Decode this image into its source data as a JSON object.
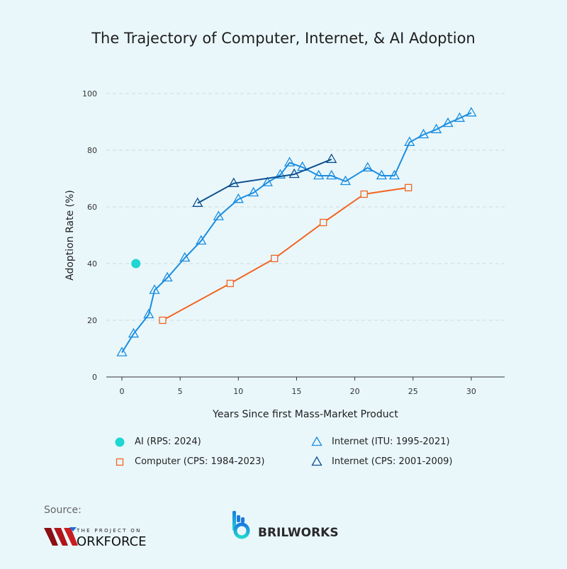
{
  "chart_data": {
    "type": "line",
    "title": "The Trajectory of Computer, Internet, & AI Adoption",
    "xlabel": "Years Since first Mass-Market Product",
    "ylabel": "Adoption Rate (%)",
    "xlim": [
      -1.5,
      33
    ],
    "ylim": [
      0,
      100
    ],
    "xticks": [
      0,
      5,
      10,
      15,
      20,
      25,
      30
    ],
    "yticks": [
      0,
      20,
      40,
      60,
      80,
      100
    ],
    "grid": "horizontal dashed",
    "legend": "bottom",
    "series": [
      {
        "name": "AI (RPS: 2024)",
        "marker": "circle",
        "color": "#1fd6d0",
        "x": [
          1.2
        ],
        "y": [
          40
        ]
      },
      {
        "name": "Internet (ITU: 1995-2021)",
        "marker": "triangle",
        "color": "#1a8de0",
        "x": [
          0,
          1,
          2.3,
          2.8,
          3.9,
          5.4,
          6.8,
          8.3,
          10,
          11.3,
          12.5,
          13.6,
          14.4,
          15.5,
          16.9,
          18,
          19.2,
          21.1,
          22.3,
          23.4,
          24.7,
          25.9,
          27,
          28,
          29,
          30
        ],
        "y": [
          8.6,
          15.2,
          22,
          30.6,
          35,
          42,
          48,
          56.6,
          62.7,
          65,
          68.6,
          71.3,
          75.6,
          74,
          71,
          71,
          69,
          73.8,
          71,
          71,
          82.8,
          85.5,
          87.3,
          89.5,
          91.3,
          93.2
        ]
      },
      {
        "name": "Computer (CPS: 1984-2023)",
        "marker": "square",
        "color": "#f26522",
        "x": [
          3.5,
          9.3,
          13.1,
          17.3,
          20.8,
          24.6
        ],
        "y": [
          20,
          33,
          41.8,
          54.5,
          64.5,
          66.8
        ]
      },
      {
        "name": "Internet (CPS: 2001-2009)",
        "marker": "triangle",
        "color": "#0d4f8f",
        "x": [
          6.5,
          9.6,
          14.8,
          18
        ],
        "y": [
          61.3,
          68.3,
          71.5,
          76.8
        ]
      }
    ]
  },
  "footer": {
    "source_label": "Source:",
    "logo_left": "THE PROJECT ON WORKFORCE",
    "logo_right": "BRILWORKS"
  }
}
